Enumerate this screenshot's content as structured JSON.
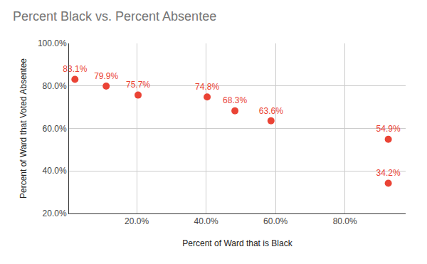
{
  "chart_data": {
    "type": "scatter",
    "title": "Percent Black vs. Percent Absentee",
    "x_label": "Percent of Ward that is Black",
    "y_label": "Percent of Ward that Voted Absentee",
    "x": [
      2.2,
      11.2,
      20.4,
      40.3,
      48.3,
      58.7,
      92.5,
      92.5
    ],
    "values": [
      83.1,
      79.9,
      75.7,
      74.8,
      68.3,
      63.6,
      54.9,
      34.2
    ],
    "value_labels": [
      "83.1%",
      "79.9%",
      "75.7%",
      "74.8%",
      "68.3%",
      "63.6%",
      "54.9%",
      "34.2%"
    ],
    "color": "#ea4335",
    "marker": "circle",
    "data_labels": true,
    "grid": true,
    "xlim": [
      0.5,
      97.5
    ],
    "ylim": [
      20,
      100
    ],
    "xticks": [
      {
        "value": 20,
        "label": "20.0%"
      },
      {
        "value": 40,
        "label": "40.0%"
      },
      {
        "value": 60,
        "label": "60.0%"
      },
      {
        "value": 80,
        "label": "80.0%"
      }
    ],
    "yticks": [
      {
        "value": 20,
        "label": "20.0%"
      },
      {
        "value": 40,
        "label": "40.0%"
      },
      {
        "value": 60,
        "label": "60.0%"
      },
      {
        "value": 80,
        "label": "80.0%"
      },
      {
        "value": 100,
        "label": "100.0%"
      }
    ]
  }
}
